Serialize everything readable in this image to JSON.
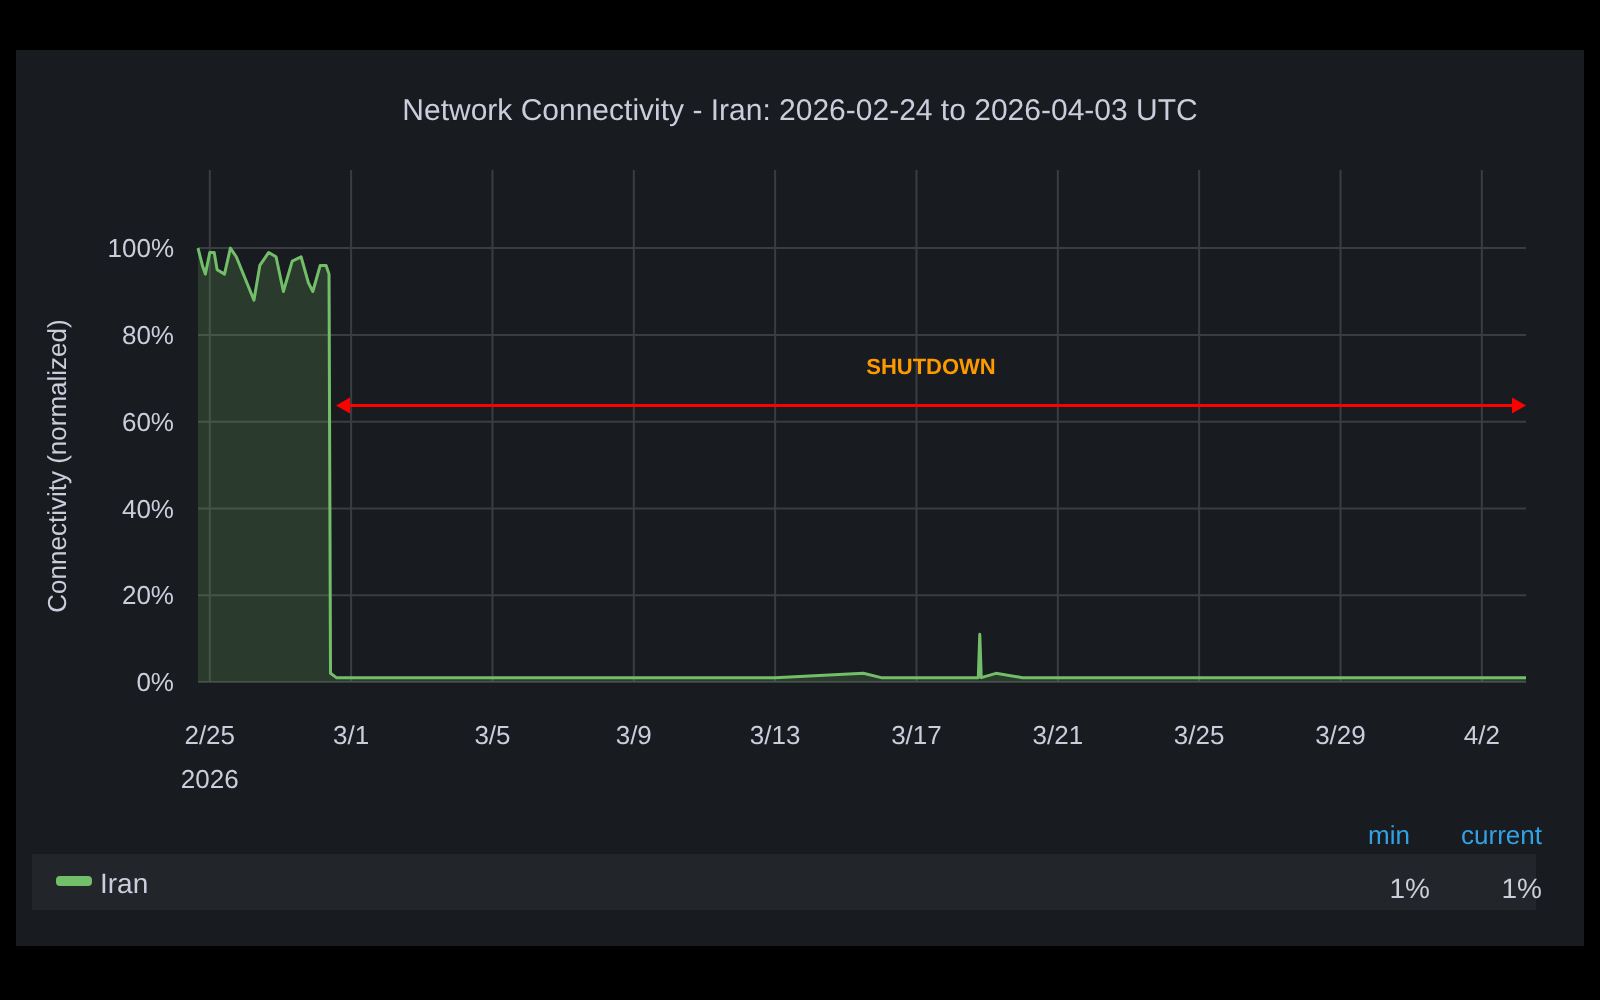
{
  "chart_data": {
    "type": "area",
    "title": "Network Connectivity - Iran: 2026-02-24 to 2026-04-03 UTC",
    "ylabel": "Connectivity (normalized)",
    "x": [
      "2026-02-24T16:00",
      "2026-02-24T19:00",
      "2026-02-24T21:00",
      "2026-02-25T00:00",
      "2026-02-25T03:00",
      "2026-02-25T05:00",
      "2026-02-25T10:00",
      "2026-02-25T14:00",
      "2026-02-25T18:00",
      "2026-02-26T00:00",
      "2026-02-26T06:00",
      "2026-02-26T10:00",
      "2026-02-26T16:00",
      "2026-02-26T21:00",
      "2026-02-27T02:00",
      "2026-02-27T08:00",
      "2026-02-27T14:00",
      "2026-02-27T19:00",
      "2026-02-27T22:00",
      "2026-02-28T03:00",
      "2026-02-28T07:00",
      "2026-02-28T09:00",
      "2026-02-28T10:00",
      "2026-02-28T14:00",
      "2026-03-01",
      "2026-03-05",
      "2026-03-09",
      "2026-03-13",
      "2026-03-15T12:00",
      "2026-03-16",
      "2026-03-18T18:00",
      "2026-03-18T19:00",
      "2026-03-18T20:00",
      "2026-03-19T06:00",
      "2026-03-20",
      "2026-03-25",
      "2026-03-29",
      "2026-04-03T06:00"
    ],
    "series": [
      {
        "name": "Iran",
        "color": "#73bf69",
        "values": [
          100,
          96,
          94,
          99,
          99,
          95,
          94,
          100,
          98,
          93,
          88,
          96,
          99,
          98,
          90,
          97,
          98,
          92,
          90,
          96,
          96,
          94,
          2,
          1,
          1,
          1,
          1,
          1,
          2,
          1,
          1,
          11,
          1,
          2,
          1,
          1,
          1,
          1
        ]
      }
    ],
    "xlim": [
      "2026-02-24T16:00",
      "2026-04-03T06:00"
    ],
    "xticks": [
      {
        "value": "2026-02-25",
        "label": "2/25\n2026"
      },
      {
        "value": "2026-03-01",
        "label": "3/1"
      },
      {
        "value": "2026-03-05",
        "label": "3/5"
      },
      {
        "value": "2026-03-09",
        "label": "3/9"
      },
      {
        "value": "2026-03-13",
        "label": "3/13"
      },
      {
        "value": "2026-03-17",
        "label": "3/17"
      },
      {
        "value": "2026-03-21",
        "label": "3/21"
      },
      {
        "value": "2026-03-25",
        "label": "3/25"
      },
      {
        "value": "2026-03-29",
        "label": "3/29"
      },
      {
        "value": "2026-04-02",
        "label": "4/2"
      }
    ],
    "ylim": [
      0,
      118
    ],
    "yticks": [
      {
        "value": 0,
        "label": "0%"
      },
      {
        "value": 20,
        "label": "20%"
      },
      {
        "value": 40,
        "label": "40%"
      },
      {
        "value": 60,
        "label": "60%"
      },
      {
        "value": 80,
        "label": "80%"
      },
      {
        "value": 100,
        "label": "100%"
      }
    ],
    "grid": true,
    "legend": "bottom",
    "annotations": [
      "SHUTDOWN",
      "min",
      "current",
      "1%",
      "1%"
    ]
  }
}
